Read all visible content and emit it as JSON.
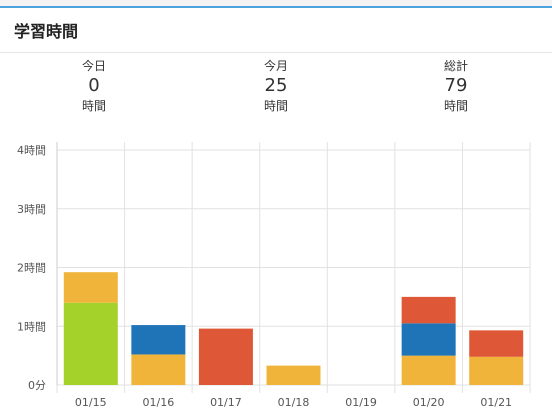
{
  "header": {
    "title": "学習時間"
  },
  "stats": [
    {
      "label": "今日",
      "value": "0",
      "unit": "時間"
    },
    {
      "label": "今月",
      "value": "25",
      "unit": "時間"
    },
    {
      "label": "総計",
      "value": "79",
      "unit": "時間"
    }
  ],
  "colors": {
    "green": "#a5d12b",
    "yellow": "#f0b43a",
    "blue": "#1f73b7",
    "red": "#de5838",
    "grid": "#e2e2e2",
    "accent": "#4aa3df"
  },
  "chart_data": {
    "type": "bar",
    "stacked": true,
    "categories": [
      "01/15",
      "01/16",
      "01/17",
      "01/18",
      "01/19",
      "01/20",
      "01/21"
    ],
    "y_ticks": [
      "0分",
      "1時間",
      "2時間",
      "3時間",
      "4時間"
    ],
    "ylim": [
      0,
      4
    ],
    "grid": true,
    "series": [
      {
        "color": "green",
        "values": [
          1.4,
          0,
          0,
          0,
          0,
          0,
          0
        ]
      },
      {
        "color": "yellow",
        "values": [
          0.52,
          0.52,
          0,
          0.33,
          0,
          0.5,
          0.48
        ]
      },
      {
        "color": "blue",
        "values": [
          0,
          0.5,
          0,
          0,
          0,
          0.55,
          0
        ]
      },
      {
        "color": "red",
        "values": [
          0,
          0,
          0.96,
          0,
          0,
          0.45,
          0.45
        ]
      }
    ]
  }
}
